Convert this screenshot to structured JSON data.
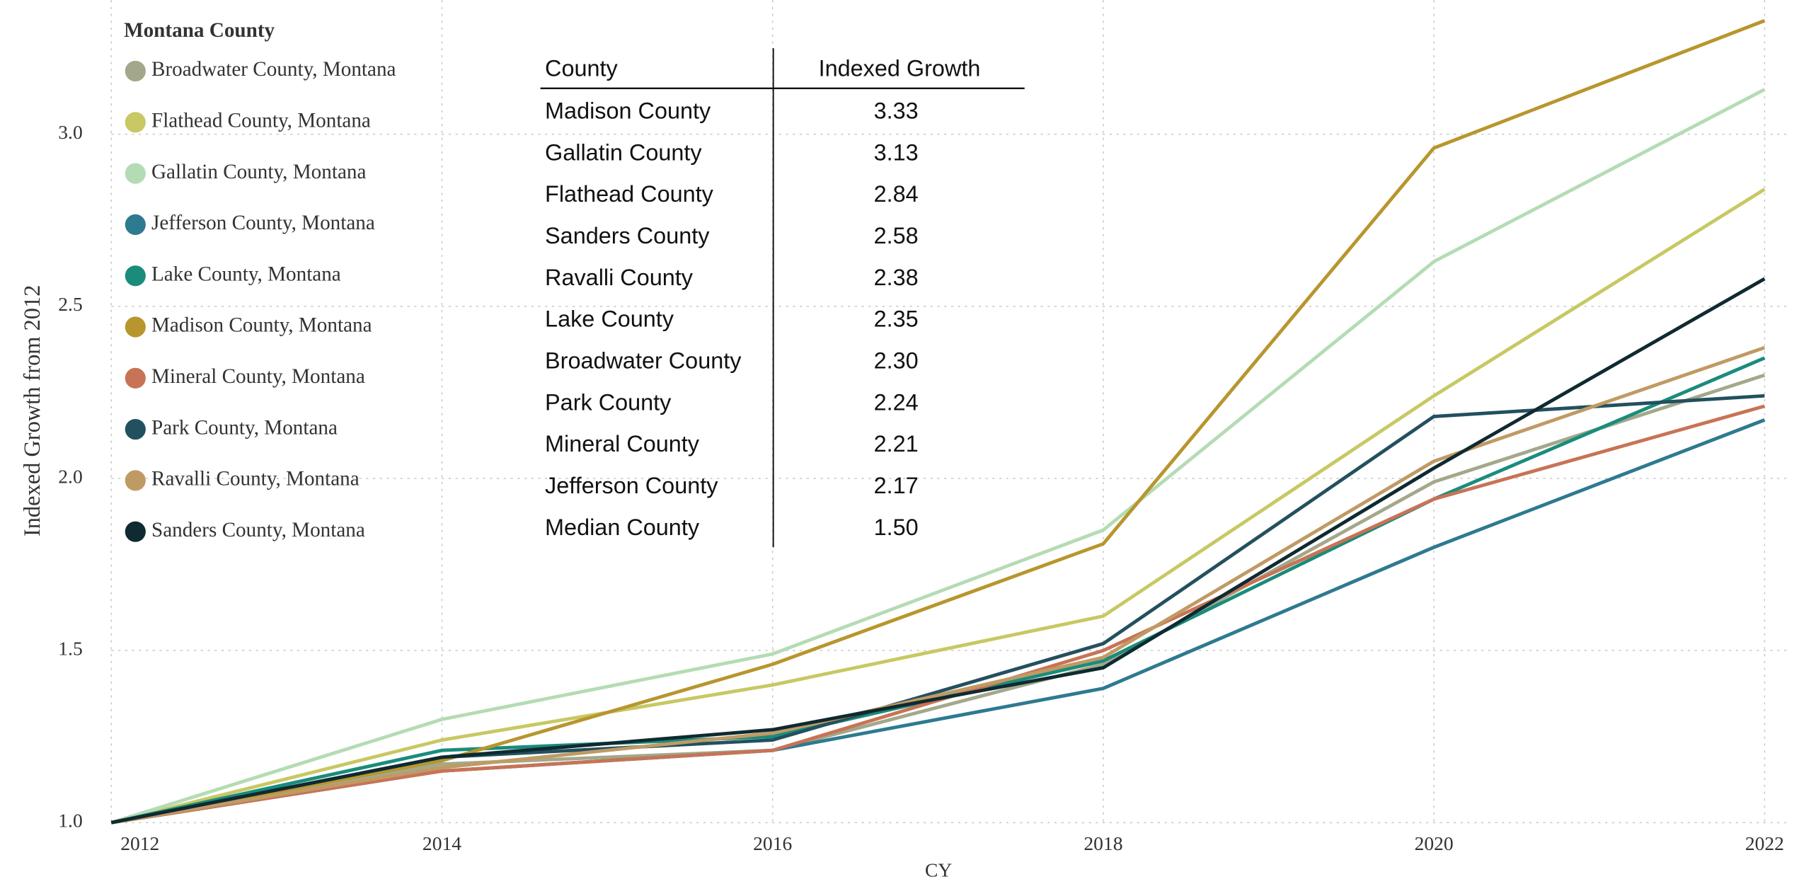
{
  "chart_data": {
    "type": "line",
    "legend_title": "Montana County",
    "ylabel": "Indexed Growth from 2012",
    "xlabel": "CY",
    "x": [
      2012,
      2014,
      2016,
      2018,
      2020,
      2022
    ],
    "xlim": [
      2012,
      2022
    ],
    "xticks": [
      2012,
      2014,
      2016,
      2018,
      2020,
      2022
    ],
    "ylim": [
      1,
      3.35
    ],
    "yticks": [
      {
        "value": 1,
        "label": "1.0"
      },
      {
        "value": 1.5,
        "label": "1.5"
      },
      {
        "value": 2,
        "label": "2.0"
      },
      {
        "value": 2.5,
        "label": "2.5"
      },
      {
        "value": 3,
        "label": "3.0"
      }
    ],
    "grid": true,
    "legend": "upper left",
    "series": [
      {
        "name": "Broadwater County, Montana",
        "color": "#a3a88a",
        "values": [
          1.0,
          1.17,
          1.21,
          1.46,
          1.99,
          2.3
        ]
      },
      {
        "name": "Flathead County, Montana",
        "color": "#c8c864",
        "values": [
          1.0,
          1.24,
          1.4,
          1.6,
          2.24,
          2.84
        ]
      },
      {
        "name": "Gallatin County, Montana",
        "color": "#b4dcb4",
        "values": [
          1.0,
          1.3,
          1.49,
          1.85,
          2.63,
          3.13
        ]
      },
      {
        "name": "Jefferson County, Montana",
        "color": "#2e7a90",
        "values": [
          1.0,
          1.15,
          1.21,
          1.39,
          1.8,
          2.17
        ]
      },
      {
        "name": "Lake County, Montana",
        "color": "#1a8c7c",
        "values": [
          1.0,
          1.21,
          1.25,
          1.47,
          1.94,
          2.35
        ]
      },
      {
        "name": "Madison County, Montana",
        "color": "#b8962e",
        "values": [
          1.0,
          1.18,
          1.46,
          1.81,
          2.96,
          3.33
        ]
      },
      {
        "name": "Mineral County, Montana",
        "color": "#c87356",
        "values": [
          1.0,
          1.15,
          1.21,
          1.5,
          1.94,
          2.21
        ]
      },
      {
        "name": "Park County, Montana",
        "color": "#23505e",
        "values": [
          1.0,
          1.19,
          1.24,
          1.52,
          2.18,
          2.24
        ]
      },
      {
        "name": "Ravalli County, Montana",
        "color": "#c09a64",
        "values": [
          1.0,
          1.16,
          1.26,
          1.48,
          2.05,
          2.38
        ]
      },
      {
        "name": "Sanders County, Montana",
        "color": "#0f2a30",
        "values": [
          1.0,
          1.19,
          1.27,
          1.45,
          2.03,
          2.58
        ]
      }
    ]
  },
  "table": {
    "columns": [
      "County",
      "Indexed Growth"
    ],
    "rows": [
      [
        "Madison County",
        "3.33"
      ],
      [
        "Gallatin County",
        "3.13"
      ],
      [
        "Flathead County",
        "2.84"
      ],
      [
        "Sanders County",
        "2.58"
      ],
      [
        "Ravalli County",
        "2.38"
      ],
      [
        "Lake County",
        "2.35"
      ],
      [
        "Broadwater County",
        "2.30"
      ],
      [
        "Park County",
        "2.24"
      ],
      [
        "Mineral County",
        "2.21"
      ],
      [
        "Jefferson County",
        "2.17"
      ],
      [
        "Median County",
        "1.50"
      ]
    ]
  }
}
